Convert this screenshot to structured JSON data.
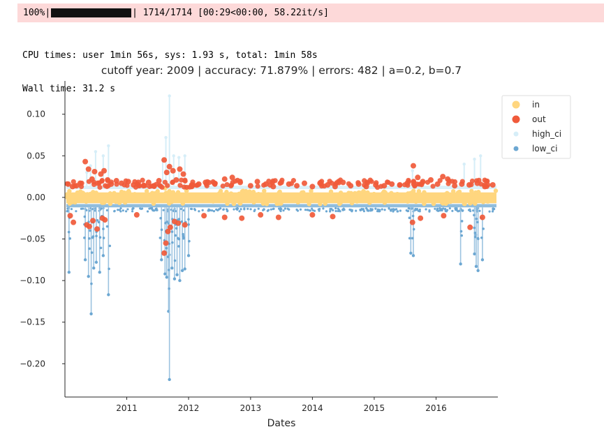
{
  "progress": {
    "percent": "100%",
    "fraction": 1.0,
    "left_sep": "|",
    "right_sep": "|",
    "count": "1714/1714",
    "timing": "[00:29<00:00, 58.22it/s]"
  },
  "output": {
    "line1": "CPU times: user 1min 56s, sys: 1.93 s, total: 1min 58s",
    "line2": "Wall time: 31.2 s"
  },
  "chart_data": {
    "type": "scatter",
    "title": "cutoff year: 2009 | accuracy: 71.879% | errors: 482 | a=0.2, b=0.7",
    "xlabel": "Dates",
    "ylabel": "",
    "xlim": [
      "2010-01-01",
      "2016-12-31"
    ],
    "ylim": [
      -0.24,
      0.14
    ],
    "xticks": [
      {
        "label": "2011",
        "value": "2011-01-01"
      },
      {
        "label": "2012",
        "value": "2012-01-01"
      },
      {
        "label": "2013",
        "value": "2013-01-01"
      },
      {
        "label": "2014",
        "value": "2014-01-01"
      },
      {
        "label": "2015",
        "value": "2015-01-01"
      },
      {
        "label": "2016",
        "value": "2016-01-01"
      }
    ],
    "yticks": [
      {
        "label": "0.10",
        "value": 0.1
      },
      {
        "label": "0.05",
        "value": 0.05
      },
      {
        "label": "0.00",
        "value": 0.0
      },
      {
        "label": "−0.05",
        "value": -0.05
      },
      {
        "label": "−0.10",
        "value": -0.1
      },
      {
        "label": "−0.15",
        "value": -0.15
      },
      {
        "label": "−0.20",
        "value": -0.2
      }
    ],
    "grid": false,
    "legend_position": "top-right",
    "legend": [
      {
        "name": "in",
        "color": "#ffd67f"
      },
      {
        "name": "out",
        "color": "#f05a3a"
      },
      {
        "name": "high_ci",
        "color": "#d6eef8"
      },
      {
        "name": "low_ci",
        "color": "#6ca7d2"
      }
    ],
    "series": [
      {
        "name": "in",
        "color": "#ffd67f",
        "description_level": "dense band of points near zero",
        "points": [
          [
            "2010-02-01",
            0.003
          ],
          [
            "2010-04-01",
            -0.002
          ],
          [
            "2010-06-01",
            0.004
          ],
          [
            "2010-08-01",
            -0.003
          ],
          [
            "2010-10-01",
            0.002
          ],
          [
            "2010-12-01",
            -0.001
          ],
          [
            "2011-02-01",
            0.003
          ],
          [
            "2011-04-01",
            -0.002
          ],
          [
            "2011-06-01",
            0.005
          ],
          [
            "2011-08-15",
            0.011
          ],
          [
            "2011-10-01",
            0.006
          ],
          [
            "2011-12-20",
            0.008
          ],
          [
            "2012-02-01",
            0.002
          ],
          [
            "2012-04-01",
            -0.003
          ],
          [
            "2012-06-01",
            0.002
          ],
          [
            "2012-08-01",
            -0.002
          ],
          [
            "2012-10-01",
            0.003
          ],
          [
            "2012-12-01",
            -0.001
          ],
          [
            "2013-02-01",
            0.002
          ],
          [
            "2013-04-01",
            -0.002
          ],
          [
            "2013-06-01",
            0.003
          ],
          [
            "2013-08-01",
            -0.003
          ],
          [
            "2013-10-01",
            0.002
          ],
          [
            "2013-12-01",
            -0.001
          ],
          [
            "2014-02-01",
            0.003
          ],
          [
            "2014-04-01",
            -0.002
          ],
          [
            "2014-06-01",
            0.002
          ],
          [
            "2014-08-01",
            -0.003
          ],
          [
            "2014-10-01",
            0.003
          ],
          [
            "2014-12-01",
            -0.001
          ],
          [
            "2015-02-01",
            0.002
          ],
          [
            "2015-04-01",
            -0.002
          ],
          [
            "2015-06-01",
            0.003
          ],
          [
            "2015-08-15",
            0.006
          ],
          [
            "2015-10-01",
            0.002
          ],
          [
            "2015-12-01",
            -0.002
          ],
          [
            "2016-02-01",
            0.003
          ],
          [
            "2016-04-01",
            -0.002
          ],
          [
            "2016-06-01",
            0.002
          ],
          [
            "2016-08-01",
            -0.003
          ],
          [
            "2016-10-01",
            0.003
          ],
          [
            "2016-12-01",
            -0.001
          ]
        ]
      },
      {
        "name": "out",
        "color": "#f05a3a",
        "points": [
          [
            "2010-01-20",
            0.016
          ],
          [
            "2010-02-15",
            0.013
          ],
          [
            "2010-03-10",
            0.014
          ],
          [
            "2010-04-01",
            0.017
          ],
          [
            "2010-05-01",
            0.043
          ],
          [
            "2010-05-20",
            0.034
          ],
          [
            "2010-06-10",
            0.022
          ],
          [
            "2010-06-25",
            0.031
          ],
          [
            "2010-07-15",
            0.017
          ],
          [
            "2010-08-01",
            0.028
          ],
          [
            "2010-08-20",
            0.032
          ],
          [
            "2010-09-10",
            0.021
          ],
          [
            "2010-10-01",
            0.016
          ],
          [
            "2010-11-01",
            0.02
          ],
          [
            "2010-12-01",
            0.017
          ],
          [
            "2011-01-10",
            0.019
          ],
          [
            "2011-02-10",
            0.015
          ],
          [
            "2011-03-10",
            0.018
          ],
          [
            "2011-04-10",
            0.014
          ],
          [
            "2011-05-10",
            0.018
          ],
          [
            "2011-06-10",
            0.014
          ],
          [
            "2011-07-10",
            0.02
          ],
          [
            "2011-08-10",
            0.045
          ],
          [
            "2011-08-25",
            0.03
          ],
          [
            "2011-09-10",
            0.037
          ],
          [
            "2011-10-01",
            0.032
          ],
          [
            "2011-10-20",
            0.021
          ],
          [
            "2011-11-10",
            0.034
          ],
          [
            "2011-12-01",
            0.028
          ],
          [
            "2012-01-20",
            0.015
          ],
          [
            "2012-03-01",
            0.016
          ],
          [
            "2012-04-10",
            0.018
          ],
          [
            "2012-06-01",
            0.017
          ],
          [
            "2012-08-01",
            0.022
          ],
          [
            "2012-09-15",
            0.024
          ],
          [
            "2012-11-01",
            0.018
          ],
          [
            "2013-01-01",
            0.014
          ],
          [
            "2013-02-10",
            0.019
          ],
          [
            "2013-04-01",
            0.016
          ],
          [
            "2013-05-15",
            0.013
          ],
          [
            "2013-07-01",
            0.018
          ],
          [
            "2013-08-15",
            0.016
          ],
          [
            "2013-10-01",
            0.014
          ],
          [
            "2013-11-15",
            0.017
          ],
          [
            "2014-01-01",
            0.013
          ],
          [
            "2014-02-15",
            0.017
          ],
          [
            "2014-04-01",
            0.015
          ],
          [
            "2014-05-15",
            0.013
          ],
          [
            "2014-07-01",
            0.018
          ],
          [
            "2014-08-15",
            0.014
          ],
          [
            "2014-10-01",
            0.016
          ],
          [
            "2014-11-15",
            0.013
          ],
          [
            "2015-01-10",
            0.015
          ],
          [
            "2015-03-01",
            0.014
          ],
          [
            "2015-04-15",
            0.016
          ],
          [
            "2015-06-01",
            0.015
          ],
          [
            "2015-07-15",
            0.017
          ],
          [
            "2015-08-20",
            0.038
          ],
          [
            "2015-09-15",
            0.024
          ],
          [
            "2015-10-15",
            0.019
          ],
          [
            "2015-12-01",
            0.021
          ],
          [
            "2016-01-10",
            0.016
          ],
          [
            "2016-02-10",
            0.025
          ],
          [
            "2016-03-10",
            0.022
          ],
          [
            "2016-04-20",
            0.014
          ],
          [
            "2016-06-01",
            0.016
          ],
          [
            "2016-07-15",
            0.015
          ],
          [
            "2016-09-01",
            0.017
          ],
          [
            "2016-10-15",
            0.013
          ],
          [
            "2016-12-01",
            0.015
          ],
          [
            "2010-02-01",
            -0.022
          ],
          [
            "2010-02-20",
            -0.03
          ],
          [
            "2010-05-10",
            -0.033
          ],
          [
            "2010-05-25",
            -0.035
          ],
          [
            "2010-06-15",
            -0.028
          ],
          [
            "2010-07-10",
            -0.038
          ],
          [
            "2010-08-10",
            -0.025
          ],
          [
            "2010-08-25",
            -0.027
          ],
          [
            "2011-03-01",
            -0.021
          ],
          [
            "2011-08-10",
            -0.067
          ],
          [
            "2011-08-20",
            -0.055
          ],
          [
            "2011-09-01",
            -0.041
          ],
          [
            "2011-09-15",
            -0.036
          ],
          [
            "2011-10-10",
            -0.029
          ],
          [
            "2011-11-01",
            -0.031
          ],
          [
            "2011-12-10",
            -0.033
          ],
          [
            "2012-04-01",
            -0.022
          ],
          [
            "2012-08-01",
            -0.024
          ],
          [
            "2012-11-10",
            -0.025
          ],
          [
            "2013-03-01",
            -0.021
          ],
          [
            "2013-06-15",
            -0.024
          ],
          [
            "2014-01-01",
            -0.021
          ],
          [
            "2014-05-01",
            -0.023
          ],
          [
            "2015-08-15",
            -0.03
          ],
          [
            "2015-10-01",
            -0.025
          ],
          [
            "2016-02-15",
            -0.022
          ],
          [
            "2016-07-20",
            -0.036
          ],
          [
            "2016-10-01",
            -0.024
          ]
        ]
      },
      {
        "name": "high_ci",
        "color": "#d6eef8",
        "band": [
          0.01,
          0.014
        ],
        "spikes": [
          [
            "2010-05-10",
            0.03
          ],
          [
            "2010-06-01",
            0.038
          ],
          [
            "2010-07-01",
            0.055
          ],
          [
            "2010-08-15",
            0.05
          ],
          [
            "2010-09-15",
            0.062
          ],
          [
            "2011-08-01",
            0.045
          ],
          [
            "2011-08-20",
            0.072
          ],
          [
            "2011-09-10",
            0.122
          ],
          [
            "2011-10-05",
            0.05
          ],
          [
            "2011-11-05",
            0.048
          ],
          [
            "2011-12-10",
            0.05
          ],
          [
            "2015-08-15",
            0.032
          ],
          [
            "2016-06-15",
            0.04
          ],
          [
            "2016-08-15",
            0.046
          ],
          [
            "2016-09-20",
            0.05
          ]
        ]
      },
      {
        "name": "low_ci",
        "color": "#6ca7d2",
        "band": [
          -0.012,
          -0.008
        ],
        "spikes": [
          [
            "2010-01-25",
            -0.09
          ],
          [
            "2010-05-01",
            -0.075
          ],
          [
            "2010-05-20",
            -0.095
          ],
          [
            "2010-06-05",
            -0.14
          ],
          [
            "2010-06-20",
            -0.085
          ],
          [
            "2010-07-05",
            -0.078
          ],
          [
            "2010-07-25",
            -0.09
          ],
          [
            "2010-08-15",
            -0.07
          ],
          [
            "2010-09-15",
            -0.117
          ],
          [
            "2011-07-25",
            -0.075
          ],
          [
            "2011-08-15",
            -0.092
          ],
          [
            "2011-08-25",
            -0.096
          ],
          [
            "2011-09-05",
            -0.137
          ],
          [
            "2011-09-10",
            -0.219
          ],
          [
            "2011-09-25",
            -0.085
          ],
          [
            "2011-10-10",
            -0.098
          ],
          [
            "2011-10-25",
            -0.093
          ],
          [
            "2011-11-10",
            -0.1
          ],
          [
            "2011-11-25",
            -0.088
          ],
          [
            "2011-12-10",
            -0.086
          ],
          [
            "2012-01-01",
            -0.07
          ],
          [
            "2015-08-05",
            -0.067
          ],
          [
            "2015-08-20",
            -0.07
          ],
          [
            "2016-05-25",
            -0.08
          ],
          [
            "2016-08-15",
            -0.068
          ],
          [
            "2016-08-25",
            -0.083
          ],
          [
            "2016-09-05",
            -0.088
          ],
          [
            "2016-10-01",
            -0.075
          ]
        ]
      }
    ]
  }
}
